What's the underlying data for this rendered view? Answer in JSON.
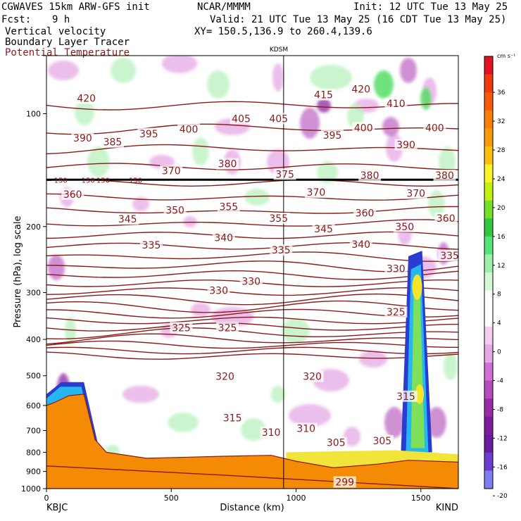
{
  "header": {
    "model": "CGWAVES 15km ARW-GFS init",
    "org": "NCAR/MMMM",
    "init": "Init: 12 UTC Tue 13 May 25",
    "fcst_label": "Fcst:",
    "fcst_value": "9 h",
    "valid": "Valid: 21 UTC Tue 13 May 25 (16 CDT Tue 13 May 25)",
    "field1": "Vertical velocity",
    "field2": "Boundary Layer Tracer",
    "field3": "Potential Temperature",
    "xy": "XY= 150.5,136.9 to 260.4,139.6",
    "station_marker": "KDSM"
  },
  "colors": {
    "theta": "#8b1a1a",
    "tropopause": "#000000",
    "terrain": "#f58a05"
  },
  "chart_data": {
    "type": "cross-section",
    "xlabel": "Distance (km)",
    "ylabel": "Pressure (hPa), log scale",
    "xlim": [
      0,
      1650
    ],
    "ylim": [
      1000,
      70
    ],
    "x_ticks": [
      "0",
      "500",
      "1000",
      "1500"
    ],
    "y_ticks": [
      "100",
      "200",
      "300",
      "400",
      "500",
      "600",
      "700",
      "800",
      "900",
      "1000"
    ],
    "left_station": "KBJC",
    "right_station": "KIND",
    "marker_x_km": 950,
    "tropopause_level": [
      "150",
      "150",
      "150",
      "150"
    ],
    "theta_labels": [
      {
        "v": "420",
        "x": 160,
        "p": 91
      },
      {
        "v": "415",
        "x": 1110,
        "p": 89
      },
      {
        "v": "420",
        "x": 1260,
        "p": 86
      },
      {
        "v": "405",
        "x": 780,
        "p": 103
      },
      {
        "v": "405",
        "x": 930,
        "p": 103
      },
      {
        "v": "410",
        "x": 1400,
        "p": 94
      },
      {
        "v": "390",
        "x": 145,
        "p": 116
      },
      {
        "v": "385",
        "x": 265,
        "p": 119
      },
      {
        "v": "395",
        "x": 410,
        "p": 113
      },
      {
        "v": "400",
        "x": 570,
        "p": 110
      },
      {
        "v": "395",
        "x": 1145,
        "p": 114
      },
      {
        "v": "400",
        "x": 1270,
        "p": 109
      },
      {
        "v": "390",
        "x": 1440,
        "p": 121
      },
      {
        "v": "400",
        "x": 1555,
        "p": 109
      },
      {
        "v": "370",
        "x": 500,
        "p": 142
      },
      {
        "v": "380",
        "x": 725,
        "p": 136
      },
      {
        "v": "375",
        "x": 955,
        "p": 145
      },
      {
        "v": "380",
        "x": 1295,
        "p": 146
      },
      {
        "v": "380",
        "x": 1595,
        "p": 146
      },
      {
        "v": "360",
        "x": 105,
        "p": 164
      },
      {
        "v": "370",
        "x": 1080,
        "p": 162
      },
      {
        "v": "370",
        "x": 1480,
        "p": 163
      },
      {
        "v": "355",
        "x": 730,
        "p": 177
      },
      {
        "v": "345",
        "x": 325,
        "p": 191
      },
      {
        "v": "350",
        "x": 515,
        "p": 181
      },
      {
        "v": "355",
        "x": 930,
        "p": 190
      },
      {
        "v": "345",
        "x": 1110,
        "p": 203
      },
      {
        "v": "360",
        "x": 1275,
        "p": 184
      },
      {
        "v": "360",
        "x": 1600,
        "p": 190
      },
      {
        "v": "350",
        "x": 1435,
        "p": 200
      },
      {
        "v": "335",
        "x": 420,
        "p": 224
      },
      {
        "v": "340",
        "x": 710,
        "p": 214
      },
      {
        "v": "335",
        "x": 940,
        "p": 231
      },
      {
        "v": "340",
        "x": 1260,
        "p": 223
      },
      {
        "v": "335",
        "x": 1615,
        "p": 239
      },
      {
        "v": "330",
        "x": 1400,
        "p": 259
      },
      {
        "v": "330",
        "x": 690,
        "p": 296
      },
      {
        "v": "330",
        "x": 820,
        "p": 280
      },
      {
        "v": "325",
        "x": 540,
        "p": 372
      },
      {
        "v": "325",
        "x": 725,
        "p": 372
      },
      {
        "v": "325",
        "x": 1400,
        "p": 338
      },
      {
        "v": "320",
        "x": 715,
        "p": 502
      },
      {
        "v": "320",
        "x": 1065,
        "p": 502
      },
      {
        "v": "315",
        "x": 745,
        "p": 648
      },
      {
        "v": "315",
        "x": 1440,
        "p": 567
      },
      {
        "v": "310",
        "x": 900,
        "p": 708
      },
      {
        "v": "310",
        "x": 1040,
        "p": 691
      },
      {
        "v": "305",
        "x": 1160,
        "p": 754
      },
      {
        "v": "305",
        "x": 1345,
        "p": 745
      },
      {
        "v": "299",
        "x": 1195,
        "p": 960
      }
    ],
    "colorbar": {
      "unit": "cm s⁻¹",
      "labels": [
        "36",
        "32",
        "28",
        "24",
        "20",
        "16",
        "12",
        "8",
        "4",
        "0",
        "-4",
        "-8",
        "-12",
        "-16",
        "-20"
      ],
      "colors": [
        "#e0121f",
        "#f03a12",
        "#f75a08",
        "#fa7d05",
        "#f99a09",
        "#fbbf12",
        "#f9f52a",
        "#c2f00f",
        "#74e02a",
        "#35c63c",
        "#58e27a",
        "#9cefac",
        "#d4f7d6",
        "#ffffff",
        "#ffffff",
        "#f2cdf0",
        "#e5a7e6",
        "#d06fd4",
        "#b64bbd",
        "#9a2ba8",
        "#7e1b9b",
        "#6a1aa0",
        "#6a3dd0",
        "#7f7ef0"
      ]
    }
  }
}
